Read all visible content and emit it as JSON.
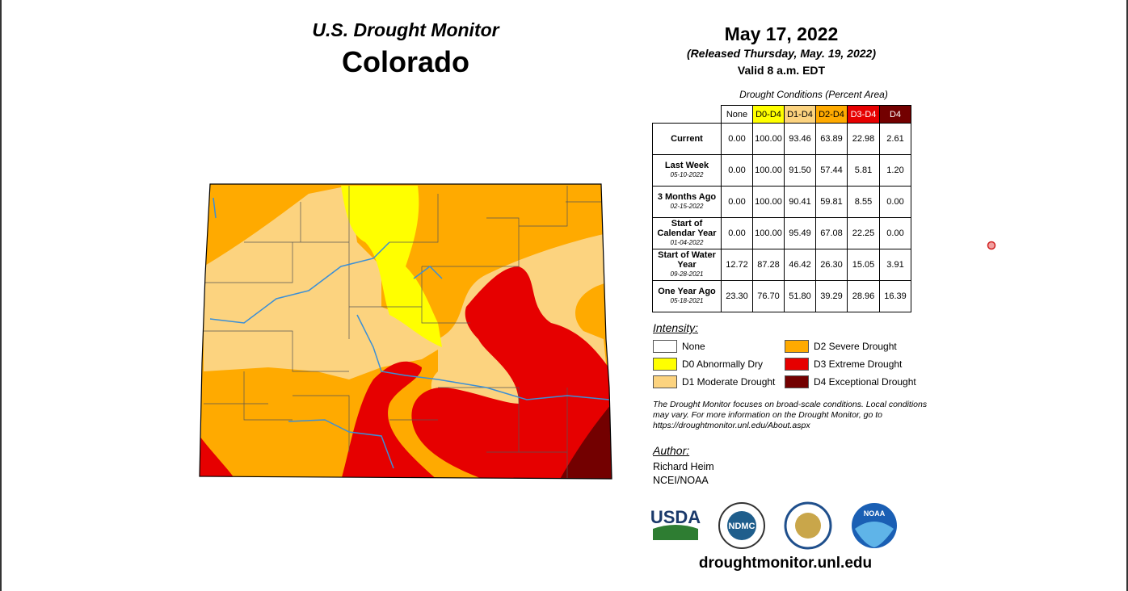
{
  "header": {
    "program": "U.S. Drought Monitor",
    "state": "Colorado",
    "date": "May 17, 2022",
    "released": "(Released Thursday, May. 19, 2022)",
    "valid": "Valid 8 a.m. EDT"
  },
  "table": {
    "caption": "Drought Conditions (Percent Area)",
    "columns": [
      "None",
      "D0-D4",
      "D1-D4",
      "D2-D4",
      "D3-D4",
      "D4"
    ],
    "rows": [
      {
        "label": "Current",
        "values": [
          "0.00",
          "100.00",
          "93.46",
          "63.89",
          "22.98",
          "2.61"
        ]
      },
      {
        "label": "Last Week",
        "date": "05-10-2022",
        "values": [
          "0.00",
          "100.00",
          "91.50",
          "57.44",
          "5.81",
          "1.20"
        ]
      },
      {
        "label": "3 Months Ago",
        "date": "02-15-2022",
        "values": [
          "0.00",
          "100.00",
          "90.41",
          "59.81",
          "8.55",
          "0.00"
        ]
      },
      {
        "label": "Start of Calendar Year",
        "date": "01-04-2022",
        "values": [
          "0.00",
          "100.00",
          "95.49",
          "67.08",
          "22.25",
          "0.00"
        ]
      },
      {
        "label": "Start of Water Year",
        "date": "09-28-2021",
        "values": [
          "12.72",
          "87.28",
          "46.42",
          "26.30",
          "15.05",
          "3.91"
        ]
      },
      {
        "label": "One Year Ago",
        "date": "05-18-2021",
        "values": [
          "23.30",
          "76.70",
          "51.80",
          "39.29",
          "28.96",
          "16.39"
        ]
      }
    ]
  },
  "legend": {
    "title": "Intensity:",
    "items": [
      "None",
      "D0 Abnormally Dry",
      "D1 Moderate Drought",
      "D2 Severe Drought",
      "D3 Extreme Drought",
      "D4 Exceptional Drought"
    ]
  },
  "note": "The Drought Monitor focuses on broad-scale conditions. Local conditions may vary. For more information on the Drought Monitor, go to https://droughtmonitor.unl.edu/About.aspx",
  "author": {
    "title": "Author:",
    "name": "Richard Heim",
    "org": "NCEI/NOAA"
  },
  "logos": [
    "USDA",
    "NDMC",
    "NOAA"
  ],
  "url": "droughtmonitor.unl.edu"
}
